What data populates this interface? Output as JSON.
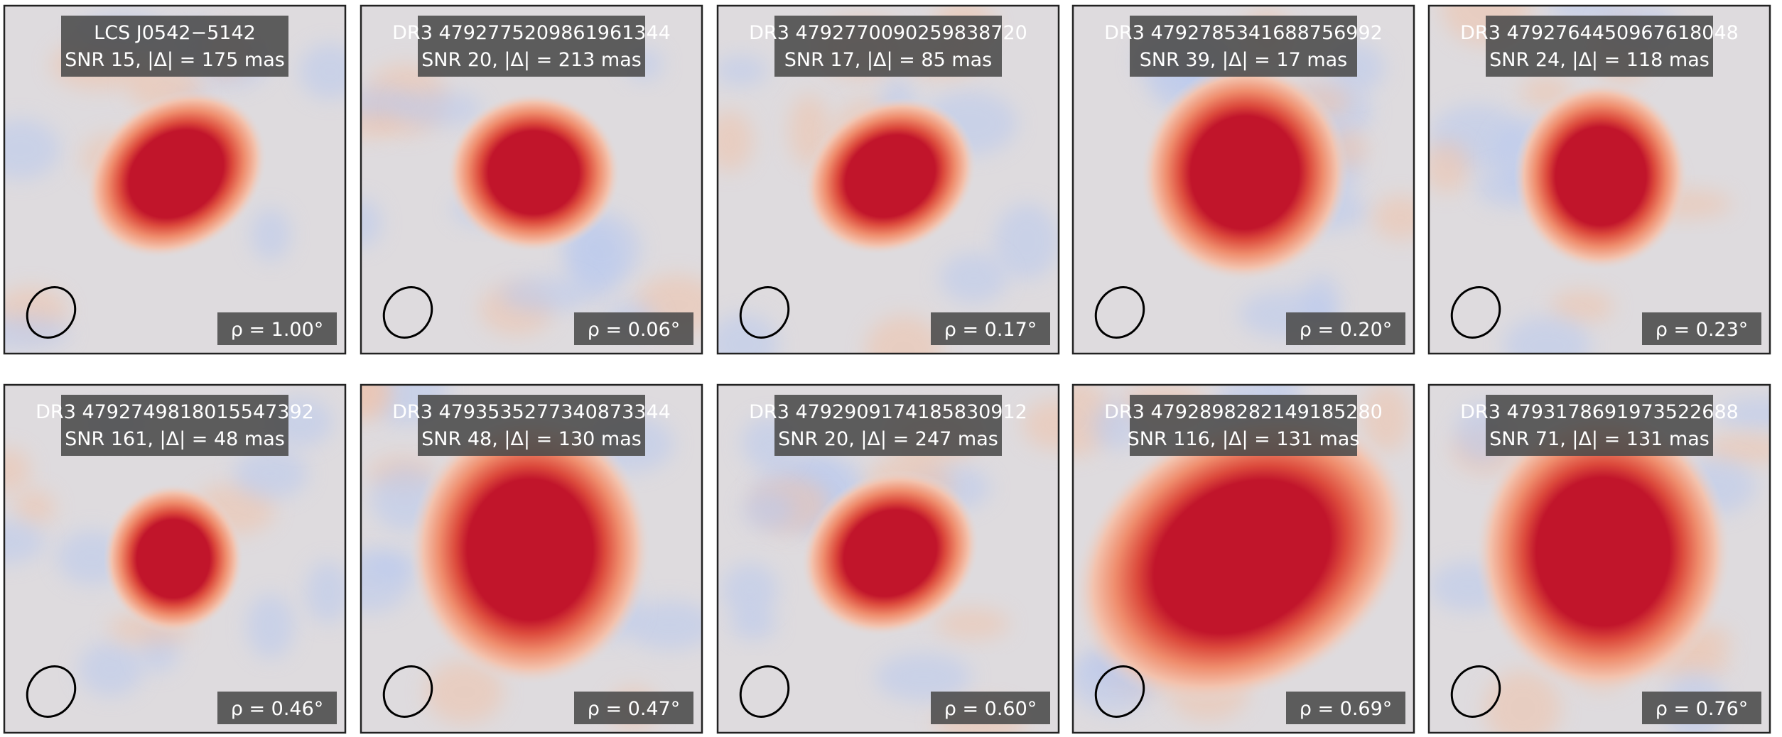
{
  "panels": [
    {
      "name": "LCS J0542−5142",
      "stats": "SNR 15, |Δ| = 175 mas",
      "rho": "ρ = 1.00°"
    },
    {
      "name": "DR3 4792775209861961344",
      "stats": "SNR 20, |Δ| = 213 mas",
      "rho": "ρ = 0.06°"
    },
    {
      "name": "DR3 4792770090259838720",
      "stats": "SNR 17, |Δ| = 85 mas",
      "rho": "ρ = 0.17°"
    },
    {
      "name": "DR3 4792785341688756992",
      "stats": "SNR 39, |Δ| = 17 mas",
      "rho": "ρ = 0.20°"
    },
    {
      "name": "DR3 4792764450967618048",
      "stats": "SNR 24, |Δ| = 118 mas",
      "rho": "ρ = 0.23°"
    },
    {
      "name": "DR3 4792749818015547392",
      "stats": "SNR 161, |Δ| = 48 mas",
      "rho": "ρ = 0.46°"
    },
    {
      "name": "DR3 4793535277340873344",
      "stats": "SNR 48, |Δ| = 130 mas",
      "rho": "ρ = 0.47°"
    },
    {
      "name": "DR3 4792909174185830912",
      "stats": "SNR 20, |Δ| = 247 mas",
      "rho": "ρ = 0.60°"
    },
    {
      "name": "DR3 4792898282149185280",
      "stats": "SNR 116, |Δ| = 131 mas",
      "rho": "ρ = 0.69°"
    },
    {
      "name": "DR3 4793178691973522688",
      "stats": "SNR 71, |Δ| = 131 mas",
      "rho": "ρ = 0.76°"
    }
  ]
}
